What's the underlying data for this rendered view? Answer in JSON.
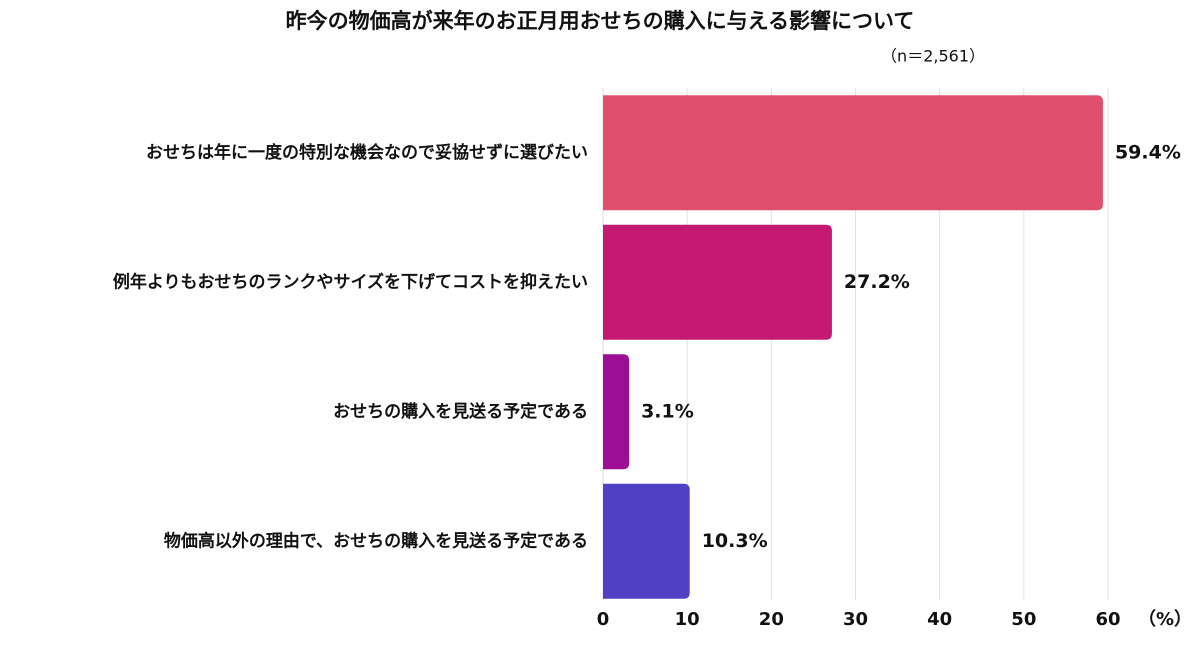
{
  "chart_data": {
    "type": "bar",
    "orientation": "horizontal",
    "title": "昨今の物価高が来年のお正月用おせちの購入に与える影響について",
    "subtitle": "（n＝2,561）",
    "x_unit_label": "（%）",
    "categories": [
      "おせちは年に一度の特別な機会なので妥協せずに選びたい",
      "例年よりもおせちのランクやサイズを下げてコストを抑えたい",
      "おせちの購入を見送る予定である",
      "物価高以外の理由で、おせちの購入を見送る予定である"
    ],
    "values": [
      59.4,
      27.2,
      3.1,
      10.3
    ],
    "value_labels": [
      "59.4%",
      "27.2%",
      "3.1%",
      "10.3%"
    ],
    "colors": [
      "#e0506e",
      "#c41a72",
      "#9c0f95",
      "#5040c4"
    ],
    "xlim": [
      0,
      60
    ],
    "xticks": [
      0,
      10,
      20,
      30,
      40,
      50,
      60
    ],
    "grid": true
  }
}
